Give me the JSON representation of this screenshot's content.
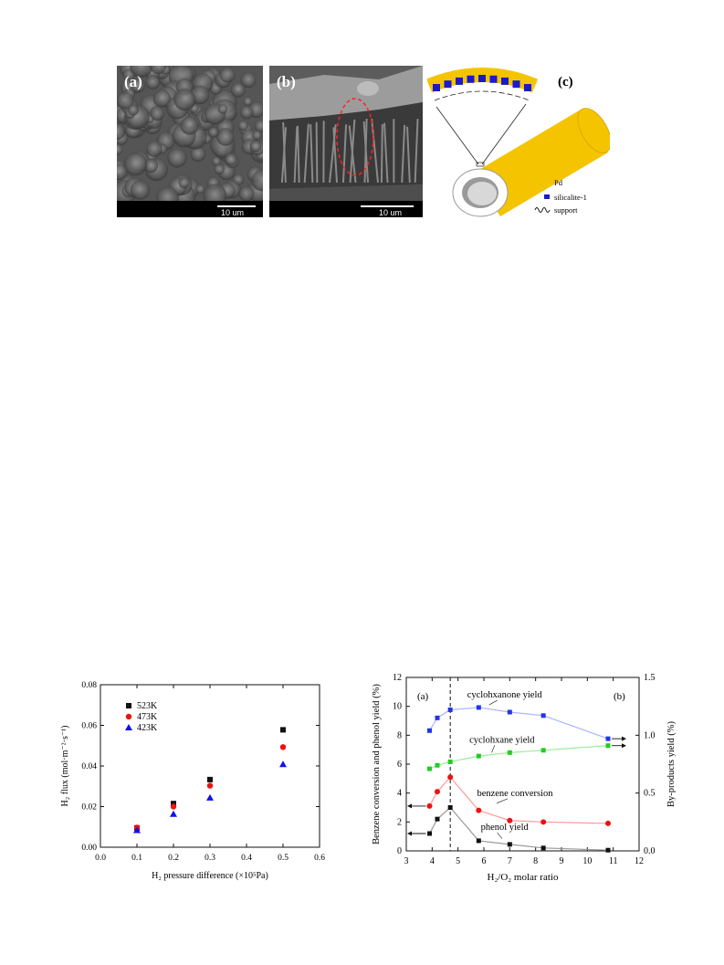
{
  "figure_top": {
    "panel_a": {
      "label": "(a)",
      "scale": "10 um"
    },
    "panel_b": {
      "label": "(b)",
      "scale": "10 um"
    },
    "panel_c": {
      "label": "(c)",
      "legend": [
        "Pd",
        "silicalite-1",
        "support"
      ]
    },
    "colors": {
      "pd": "#f5c400",
      "silicalite": "#1a1acc"
    }
  },
  "chart_data": [
    {
      "type": "scatter",
      "xlabel": "H₂ pressure difference (×10⁵Pa)",
      "ylabel": "H₂ flux (mol·m⁻²·s⁻¹)",
      "xlim": [
        0.0,
        0.6
      ],
      "ylim": [
        0.0,
        0.08
      ],
      "xticks": [
        "0.0",
        "0.1",
        "0.2",
        "0.3",
        "0.4",
        "0.5",
        "0.6"
      ],
      "yticks": [
        "0.00",
        "0.02",
        "0.04",
        "0.06",
        "0.08"
      ],
      "x": [
        0.1,
        0.2,
        0.3,
        0.5
      ],
      "legend_position": "top-left",
      "series": [
        {
          "name": "523K",
          "marker": "square",
          "color": "#111111",
          "values": [
            0.0095,
            0.0215,
            0.0333,
            0.0578
          ]
        },
        {
          "name": "473K",
          "marker": "circle",
          "color": "#ee1111",
          "values": [
            0.0097,
            0.02,
            0.0303,
            0.0493
          ]
        },
        {
          "name": "423K",
          "marker": "triangle",
          "color": "#1111ee",
          "values": [
            0.0083,
            0.0163,
            0.0243,
            0.0408
          ]
        }
      ]
    },
    {
      "type": "line",
      "xlabel": "H₂/O₂ molar ratio",
      "ylabel_left": "Benzene conversion and phenol yield (%)",
      "ylabel_right": "By-products yield (%)",
      "xlim": [
        3,
        12
      ],
      "ylim_left": [
        0,
        12
      ],
      "ylim_right": [
        0,
        1.5
      ],
      "xticks": [
        "3",
        "4",
        "5",
        "6",
        "7",
        "8",
        "9",
        "10",
        "11",
        "12"
      ],
      "yticks_left": [
        "0",
        "2",
        "4",
        "6",
        "8",
        "10",
        "12"
      ],
      "yticks_right": [
        "0.0",
        "0.5",
        "1.0",
        "1.5"
      ],
      "panel_labels": [
        "(a)",
        "(b)"
      ],
      "dashed_line_x": 4.7,
      "series": [
        {
          "name": "cyclohxanone yield",
          "axis": "right",
          "color": "#2233ee",
          "line_color": "#aab4ff",
          "x": [
            3.9,
            4.2,
            4.7,
            5.8,
            7.0,
            8.3,
            10.8
          ],
          "values": [
            1.04,
            1.15,
            1.22,
            1.24,
            1.2,
            1.17,
            0.97
          ]
        },
        {
          "name": "cyclohxane yield",
          "axis": "right",
          "color": "#22cc22",
          "line_color": "#99ee99",
          "x": [
            3.9,
            4.2,
            4.7,
            5.8,
            7.0,
            8.3,
            10.8
          ],
          "values": [
            0.71,
            0.74,
            0.77,
            0.82,
            0.85,
            0.87,
            0.91
          ]
        },
        {
          "name": "benzene conversion",
          "axis": "left",
          "color": "#ee1111",
          "line_color": "#ff9999",
          "x": [
            3.9,
            4.2,
            4.7,
            5.8,
            7.0,
            8.3,
            10.8
          ],
          "values": [
            3.1,
            4.1,
            5.1,
            2.8,
            2.1,
            2.0,
            1.9
          ]
        },
        {
          "name": "phenol yield",
          "axis": "left",
          "color": "#111111",
          "line_color": "#999999",
          "x": [
            3.9,
            4.2,
            4.7,
            5.8,
            7.0,
            8.3,
            10.8
          ],
          "values": [
            1.2,
            2.2,
            3.0,
            0.7,
            0.45,
            0.2,
            0.05
          ]
        }
      ]
    }
  ]
}
